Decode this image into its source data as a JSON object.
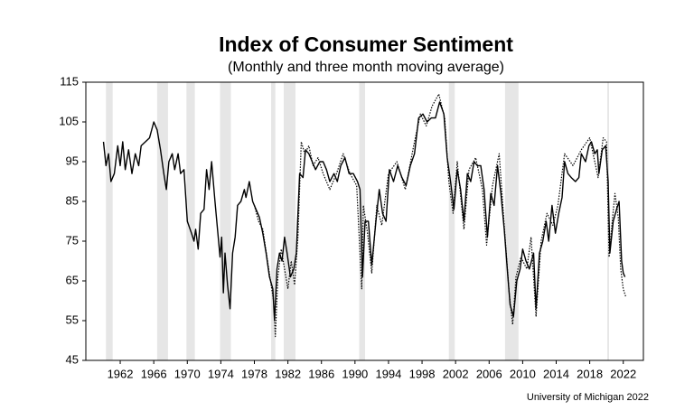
{
  "chart_data": {
    "type": "line",
    "title": "Index of Consumer Sentiment",
    "subtitle": "(Monthly and three month moving average)",
    "source": "University of Michigan 2022",
    "xlim": [
      1957.9,
      2024.4
    ],
    "xticks": [
      1962,
      1966,
      1970,
      1974,
      1978,
      1982,
      1986,
      1990,
      1994,
      1998,
      2002,
      2006,
      2010,
      2014,
      2018,
      2022
    ],
    "ylim": [
      45,
      115
    ],
    "yticks": [
      45,
      55,
      65,
      75,
      85,
      95,
      105,
      115
    ],
    "recessions": [
      [
        1960.3,
        1961.1
      ],
      [
        1966.4,
        1967.7
      ],
      [
        1969.9,
        1970.9
      ],
      [
        1973.9,
        1975.2
      ],
      [
        1980.0,
        1980.5
      ],
      [
        1981.5,
        1982.9
      ],
      [
        1990.5,
        1991.2
      ],
      [
        2001.2,
        2001.9
      ],
      [
        2007.9,
        2009.5
      ],
      [
        2020.1,
        2020.3
      ]
    ],
    "recession_color": "#e6e6e6",
    "series": [
      {
        "style": "solid",
        "color": "#000000",
        "x": [
          1960.0,
          1960.3,
          1960.6,
          1960.9,
          1961.3,
          1961.7,
          1962.0,
          1962.3,
          1962.6,
          1963.0,
          1963.4,
          1963.8,
          1964.2,
          1964.5,
          1965.0,
          1965.5,
          1966.0,
          1966.4,
          1966.8,
          1967.2,
          1967.5,
          1967.8,
          1968.2,
          1968.5,
          1968.9,
          1969.2,
          1969.6,
          1970.0,
          1970.5,
          1970.8,
          1971.0,
          1971.3,
          1971.6,
          1972.0,
          1972.3,
          1972.6,
          1972.9,
          1973.3,
          1973.6,
          1973.9,
          1974.1,
          1974.3,
          1974.5,
          1974.8,
          1975.1,
          1975.4,
          1975.7,
          1976.0,
          1976.4,
          1976.8,
          1977.0,
          1977.4,
          1977.8,
          1978.2,
          1978.6,
          1979.0,
          1979.4,
          1979.8,
          1980.2,
          1980.4,
          1980.7,
          1981.0,
          1981.3,
          1981.6,
          1981.9,
          1982.3,
          1982.7,
          1983.0,
          1983.4,
          1983.8,
          1984.1,
          1984.5,
          1984.9,
          1985.3,
          1985.8,
          1986.2,
          1986.6,
          1987.0,
          1987.5,
          1987.9,
          1988.3,
          1988.8,
          1989.3,
          1989.8,
          1990.3,
          1990.6,
          1990.9,
          1991.2,
          1991.6,
          1992.0,
          1992.5,
          1992.9,
          1993.3,
          1993.7,
          1994.1,
          1994.6,
          1995.1,
          1995.6,
          1996.1,
          1996.6,
          1997.1,
          1997.6,
          1998.1,
          1998.6,
          1999.1,
          1999.6,
          2000.1,
          2000.6,
          2001.0,
          2001.4,
          2001.8,
          2002.2,
          2002.6,
          2003.0,
          2003.4,
          2003.8,
          2004.2,
          2004.6,
          2005.0,
          2005.4,
          2005.8,
          2006.2,
          2006.6,
          2007.0,
          2007.4,
          2007.8,
          2008.2,
          2008.5,
          2008.9,
          2009.3,
          2009.7,
          2010.0,
          2010.4,
          2010.8,
          2011.3,
          2011.6,
          2012.0,
          2012.4,
          2012.8,
          2013.1,
          2013.5,
          2013.9,
          2014.3,
          2014.7,
          2015.0,
          2015.4,
          2015.8,
          2016.3,
          2016.7,
          2017.0,
          2017.5,
          2017.9,
          2018.2,
          2018.6,
          2018.9,
          2019.1,
          2019.5,
          2019.9,
          2020.2,
          2020.4,
          2020.8,
          2021.2,
          2021.5,
          2021.8,
          2022.0,
          2022.2
        ],
        "values": [
          100,
          94,
          97,
          90,
          92,
          99,
          94,
          100,
          93,
          98,
          92,
          97,
          94,
          99,
          100,
          101,
          105,
          103,
          98,
          92,
          88,
          95,
          97,
          93,
          97,
          92,
          93,
          80,
          77,
          75,
          78,
          73,
          82,
          83,
          93,
          88,
          95,
          85,
          78,
          71,
          76,
          62,
          72,
          64,
          58,
          72,
          76,
          84,
          85,
          88,
          86,
          90,
          85,
          83,
          81,
          77,
          72,
          66,
          63,
          55,
          68,
          72,
          70,
          76,
          72,
          66,
          68,
          72,
          92,
          91,
          98,
          97,
          95,
          93,
          95,
          95,
          93,
          90,
          92,
          90,
          94,
          96,
          92,
          92,
          90,
          88,
          66,
          80,
          80,
          69,
          80,
          88,
          82,
          80,
          93,
          90,
          94,
          91,
          89,
          94,
          97,
          106,
          107,
          105,
          106,
          106,
          110,
          107,
          96,
          90,
          83,
          93,
          88,
          80,
          92,
          90,
          95,
          94,
          94,
          88,
          76,
          87,
          84,
          94,
          87,
          78,
          67,
          59,
          56,
          65,
          68,
          73,
          70,
          68,
          72,
          58,
          72,
          75,
          80,
          75,
          84,
          77,
          82,
          86,
          95,
          92,
          91,
          90,
          91,
          97,
          95,
          99,
          100,
          97,
          98,
          92,
          98,
          99,
          90,
          72,
          80,
          83,
          85,
          70,
          67,
          66
        ]
      },
      {
        "style": "dotted",
        "color": "#000000",
        "x": [
          1978.0,
          1978.5,
          1979.0,
          1979.5,
          1980.0,
          1980.3,
          1980.5,
          1980.8,
          1981.2,
          1981.6,
          1982.0,
          1982.4,
          1982.8,
          1983.2,
          1983.6,
          1984.0,
          1984.5,
          1985.0,
          1985.6,
          1986.2,
          1987.0,
          1987.8,
          1988.6,
          1989.4,
          1990.2,
          1990.8,
          1991.0,
          1991.5,
          1992.0,
          1992.6,
          1993.2,
          1994.0,
          1995.0,
          1996.0,
          1997.0,
          1997.8,
          1998.5,
          1999.2,
          2000.0,
          2000.7,
          2001.2,
          2001.7,
          2002.2,
          2003.0,
          2003.6,
          2004.4,
          2005.2,
          2005.7,
          2006.4,
          2007.2,
          2007.9,
          2008.4,
          2008.8,
          2009.2,
          2009.8,
          2010.5,
          2011.0,
          2011.6,
          2012.2,
          2012.9,
          2013.6,
          2014.2,
          2015.0,
          2016.0,
          2017.0,
          2018.0,
          2019.0,
          2019.6,
          2020.0,
          2020.3,
          2020.6,
          2021.0,
          2021.4,
          2021.7,
          2022.0,
          2022.3
        ],
        "values": [
          84,
          80,
          78,
          71,
          64,
          60,
          51,
          66,
          73,
          68,
          63,
          70,
          64,
          76,
          100,
          97,
          99,
          94,
          96,
          92,
          88,
          92,
          97,
          92,
          89,
          63,
          84,
          77,
          67,
          84,
          79,
          92,
          95,
          88,
          99,
          107,
          104,
          109,
          112,
          106,
          90,
          82,
          95,
          78,
          93,
          96,
          88,
          74,
          89,
          97,
          76,
          62,
          54,
          66,
          71,
          68,
          76,
          56,
          75,
          82,
          79,
          84,
          97,
          94,
          98,
          101,
          91,
          101,
          100,
          71,
          78,
          87,
          81,
          68,
          63,
          61
        ]
      }
    ]
  }
}
